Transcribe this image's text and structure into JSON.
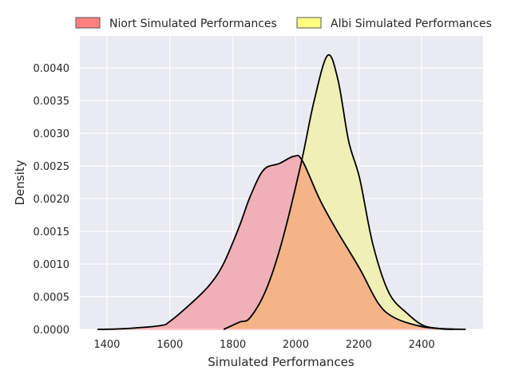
{
  "chart_data": {
    "type": "area",
    "title": "",
    "xlabel": "Simulated Performances",
    "ylabel": "Density",
    "xlim": [
      1314,
      2595
    ],
    "ylim": [
      0,
      0.00449
    ],
    "xticks": [
      1400,
      1600,
      1800,
      2000,
      2200,
      2400
    ],
    "xtick_labels": [
      "1400",
      "1600",
      "1800",
      "2000",
      "2200",
      "2400"
    ],
    "yticks": [
      0,
      0.0005,
      0.001,
      0.0015,
      0.002,
      0.0025,
      0.003,
      0.0035,
      0.004
    ],
    "ytick_labels": [
      "0.0000",
      "0.0005",
      "0.0010",
      "0.0015",
      "0.0020",
      "0.0025",
      "0.0030",
      "0.0035",
      "0.0040"
    ],
    "grid": true,
    "legend_position": "top (above plot)",
    "series": [
      {
        "name": "Niort Simulated Performances",
        "color": "#ff7f7f",
        "fill": "#f0b0b8",
        "x": [
          1370,
          1450,
          1568,
          1601,
          1677,
          1728,
          1771,
          1821,
          1855,
          1898,
          1949,
          1995,
          2021,
          2076,
          2127,
          2203,
          2262,
          2313,
          2398,
          2470,
          2540
        ],
        "y": [
          0,
          1e-05,
          5.7e-05,
          0.000126,
          0.00044,
          0.00069,
          0.00101,
          0.00158,
          0.00203,
          0.00244,
          0.00254,
          0.00265,
          0.00258,
          0.00199,
          0.00154,
          0.00093,
          0.0004,
          0.00018,
          4.5e-05,
          1e-05,
          0
        ]
      },
      {
        "name": "Albi Simulated Performances",
        "color": "#ffff80",
        "fill": "#f0f0b6",
        "x": [
          1771,
          1821,
          1855,
          1906,
          1956,
          2016,
          2058,
          2101,
          2134,
          2168,
          2203,
          2245,
          2296,
          2355,
          2405,
          2460,
          2500
        ],
        "y": [
          0,
          0.00011,
          0.00018,
          0.00061,
          0.00134,
          0.00252,
          0.00349,
          0.00419,
          0.00382,
          0.00288,
          0.00231,
          0.0013,
          0.00056,
          0.00024,
          6e-05,
          1e-05,
          0
        ]
      }
    ],
    "overlap_fill": "#f4b487"
  }
}
